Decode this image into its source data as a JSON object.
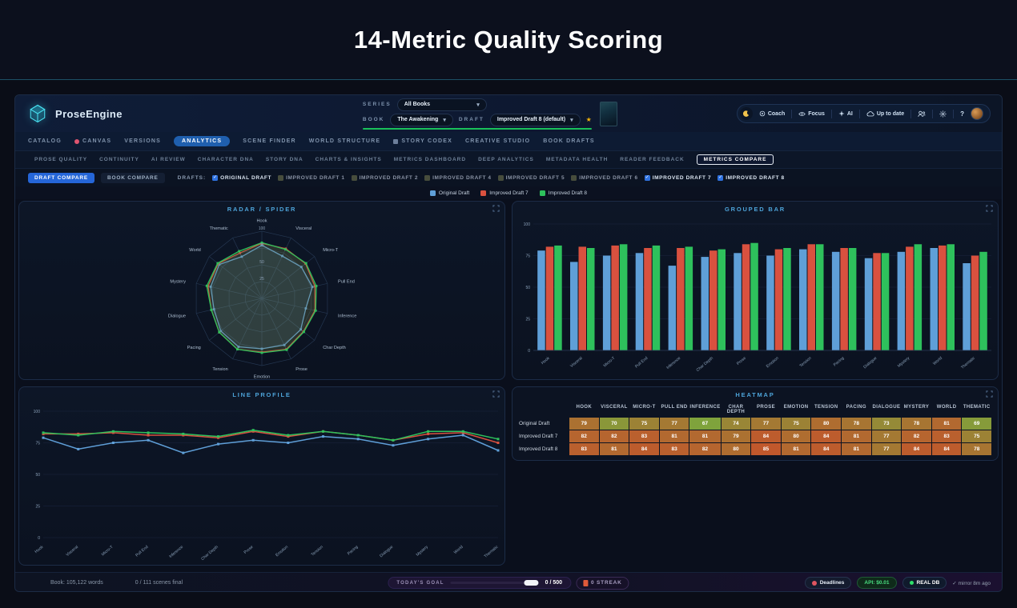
{
  "page_title": "14-Metric Quality Scoring",
  "header": {
    "brand": "ProseEngine",
    "series_label": "SERIES",
    "series_value": "All Books",
    "book_label": "BOOK",
    "book_value": "The Awakening",
    "draft_label": "DRAFT",
    "draft_value": "Improved Draft 8 (default)",
    "toolbar": {
      "coach": "Coach",
      "focus": "Focus",
      "ai": "AI",
      "sync": "Up to date",
      "help": "?"
    }
  },
  "nav": {
    "items": [
      {
        "label": "CATALOG",
        "active": false
      },
      {
        "label": "CANVAS",
        "active": false,
        "icon": "palette"
      },
      {
        "label": "VERSIONS",
        "active": false
      },
      {
        "label": "ANALYTICS",
        "active": true
      },
      {
        "label": "SCENE FINDER",
        "active": false
      },
      {
        "label": "WORLD STRUCTURE",
        "active": false
      },
      {
        "label": "STORY CODEX",
        "active": false,
        "icon": "book"
      },
      {
        "label": "CREATIVE STUDIO",
        "active": false
      },
      {
        "label": "BOOK DRAFTS",
        "active": false
      }
    ]
  },
  "subnav": {
    "items": [
      {
        "label": "PROSE QUALITY",
        "active": false
      },
      {
        "label": "CONTINUITY",
        "active": false
      },
      {
        "label": "AI REVIEW",
        "active": false
      },
      {
        "label": "CHARACTER DNA",
        "active": false
      },
      {
        "label": "STORY DNA",
        "active": false
      },
      {
        "label": "CHARTS & INSIGHTS",
        "active": false
      },
      {
        "label": "METRICS DASHBOARD",
        "active": false
      },
      {
        "label": "DEEP ANALYTICS",
        "active": false
      },
      {
        "label": "METADATA HEALTH",
        "active": false
      },
      {
        "label": "READER FEEDBACK",
        "active": false
      },
      {
        "label": "METRICS COMPARE",
        "active": true
      }
    ]
  },
  "compare_bar": {
    "tabs": [
      {
        "label": "DRAFT COMPARE",
        "active": true
      },
      {
        "label": "BOOK COMPARE",
        "active": false
      }
    ],
    "drafts_label": "DRAFTS:",
    "checkboxes": [
      {
        "label": "ORIGINAL DRAFT",
        "checked": true
      },
      {
        "label": "IMPROVED DRAFT 1",
        "checked": false
      },
      {
        "label": "IMPROVED DRAFT 2",
        "checked": false
      },
      {
        "label": "IMPROVED DRAFT 4",
        "checked": false
      },
      {
        "label": "IMPROVED DRAFT 5",
        "checked": false
      },
      {
        "label": "IMPROVED DRAFT 6",
        "checked": false
      },
      {
        "label": "IMPROVED DRAFT 7",
        "checked": true
      },
      {
        "label": "IMPROVED DRAFT 8",
        "checked": true
      }
    ]
  },
  "legend": [
    {
      "label": "Original Draft",
      "color": "#5f9fd8"
    },
    {
      "label": "Improved Draft 7",
      "color": "#d9513f"
    },
    {
      "label": "Improved Draft 8",
      "color": "#2ec15c"
    }
  ],
  "panels": {
    "radar_title": "RADAR / SPIDER",
    "bar_title": "GROUPED BAR",
    "line_title": "LINE PROFILE",
    "heatmap_title": "HEATMAP"
  },
  "chart_data": {
    "categories": [
      "Hook",
      "Visceral",
      "Micro-T",
      "Pull End",
      "Inference",
      "Char Depth",
      "Prose",
      "Emotion",
      "Tension",
      "Pacing",
      "Dialogue",
      "Mystery",
      "World",
      "Thematic"
    ],
    "series": [
      {
        "name": "Original Draft",
        "color": "#5f9fd8",
        "values": [
          79,
          70,
          75,
          77,
          67,
          74,
          77,
          75,
          80,
          78,
          73,
          78,
          81,
          69
        ]
      },
      {
        "name": "Improved Draft 7",
        "color": "#d9513f",
        "values": [
          82,
          82,
          83,
          81,
          81,
          79,
          84,
          80,
          84,
          81,
          77,
          82,
          83,
          75
        ]
      },
      {
        "name": "Improved Draft 8",
        "color": "#2ec15c",
        "values": [
          83,
          81,
          84,
          83,
          82,
          80,
          85,
          81,
          84,
          81,
          77,
          84,
          84,
          78
        ]
      }
    ],
    "charts": [
      {
        "type": "radar",
        "title": "RADAR / SPIDER",
        "rticks": [
          25,
          50,
          75,
          100
        ],
        "rlim": [
          0,
          100
        ]
      },
      {
        "type": "bar",
        "title": "GROUPED BAR",
        "yticks": [
          0,
          25,
          50,
          75,
          100
        ],
        "ylim": [
          0,
          100
        ],
        "grid": true
      },
      {
        "type": "line",
        "title": "LINE PROFILE",
        "yticks": [
          0,
          25,
          50,
          75,
          100
        ],
        "ylim": [
          0,
          100
        ],
        "grid": true
      },
      {
        "type": "heatmap",
        "title": "HEATMAP",
        "color_scale": {
          "min_value": 67,
          "max_value": 85,
          "min_color": "#7fa33c",
          "max_color": "#c1582c"
        }
      }
    ],
    "legend_position": "top-center"
  },
  "statusbar": {
    "words": "Book: 105,122 words",
    "scenes": "0 / 111 scenes final",
    "goal_label": "TODAY'S GOAL",
    "goal_value": "0 / 500",
    "streak_label": "0 STREAK",
    "deadlines": "Deadlines",
    "api": "API: $0.01",
    "db": "REAL DB",
    "mirror": "✓ mirror 8m ago"
  }
}
